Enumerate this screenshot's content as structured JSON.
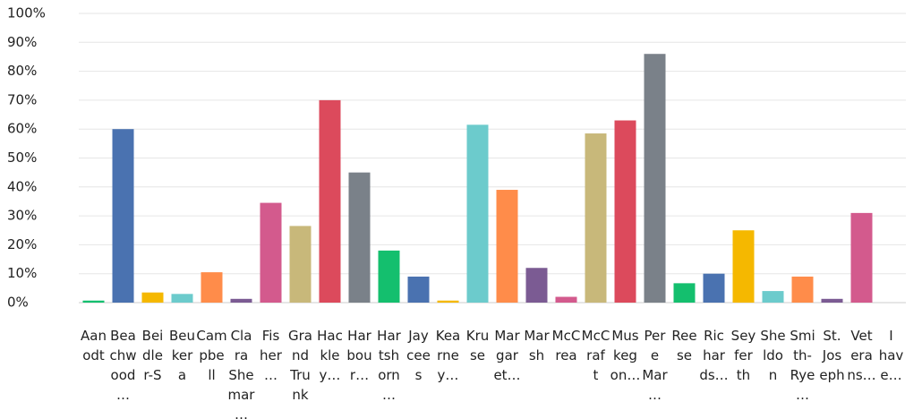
{
  "chart_data": {
    "type": "bar",
    "categories": [
      "Aanodt",
      "Beachwood…",
      "Beidler-S",
      "Beukera",
      "Campbell",
      "Clara Shemar…",
      "Fisher…",
      "Grand Trunk",
      "Hackley…",
      "Harbour…",
      "Hartshorn…",
      "Jaycees",
      "Kearney…",
      "Kruse",
      "Margaret…",
      "Marsh",
      "McCrea",
      "McCraft",
      "Muskegon…",
      "Pere Mar…",
      "Reese",
      "Richards…",
      "Seyferth",
      "Sheldon",
      "Smith-Rye…",
      "St. Joseph",
      "Veterans…",
      "I have…"
    ],
    "values": [
      0.7,
      60,
      3.5,
      3,
      10.5,
      1.3,
      34.5,
      26.5,
      70,
      45,
      18,
      9,
      0.7,
      61.5,
      39,
      12,
      2,
      58.5,
      63,
      86,
      6.7,
      10,
      25,
      4,
      9,
      1.3,
      31,
      0
    ],
    "colors": [
      "#14bf6e",
      "#4a72b0",
      "#f5b800",
      "#6ccbcc",
      "#ff8c4a",
      "#7b5b93",
      "#d35a8d",
      "#c8b87a",
      "#dc4a5c",
      "#7a8189",
      "#14bf6e",
      "#4a72b0",
      "#f5b800",
      "#6ccbcc",
      "#ff8c4a",
      "#7b5b93",
      "#d35a8d",
      "#c8b87a",
      "#dc4a5c",
      "#7a8189",
      "#14bf6e",
      "#4a72b0",
      "#f5b800",
      "#6ccbcc",
      "#ff8c4a",
      "#7b5b93",
      "#d35a8d",
      "#c8b87a"
    ],
    "ylim": [
      0,
      100
    ],
    "yticks": [
      {
        "value": 0,
        "label": "0%"
      },
      {
        "value": 10,
        "label": "10%"
      },
      {
        "value": 20,
        "label": "20%"
      },
      {
        "value": 30,
        "label": "30%"
      },
      {
        "value": 40,
        "label": "40%"
      },
      {
        "value": 50,
        "label": "50%"
      },
      {
        "value": 60,
        "label": "60%"
      },
      {
        "value": 70,
        "label": "70%"
      },
      {
        "value": 80,
        "label": "80%"
      },
      {
        "value": 90,
        "label": "90%"
      },
      {
        "value": 100,
        "label": "100%"
      }
    ],
    "grid": true
  }
}
